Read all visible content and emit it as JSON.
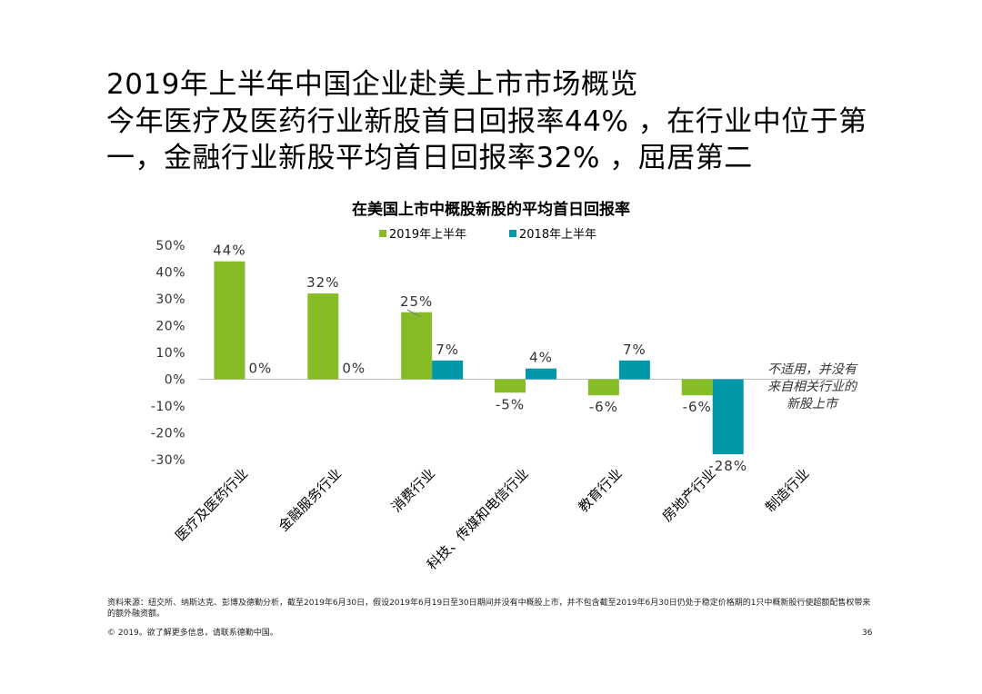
{
  "page": {
    "title": "2019年上半年中国企业赴美上市市场概览",
    "subtitle_lines": [
      "今年医疗及医药行业新股首日回报率44% ，在行业中位于第",
      "一，金融行业新股平均首日回报率32% ，屈居第二"
    ],
    "footnote": "资料来源：纽交所、纳斯达克、彭博及德勤分析，截至2019年6月30日，假设2019年6月19日至30日期间并没有中概股上市，并不包含截至2019年6月30日仍处于稳定价格期的1只中概新股行使超额配售权带来的额外融资额。",
    "copyright": "© 2019。欲了解更多信息，请联系德勤中国。",
    "page_number": "36"
  },
  "chart_data": {
    "type": "bar",
    "title": "在美国上市中概股新股的平均首日回报率",
    "categories": [
      "医疗及医药行业",
      "金融服务行业",
      "消费行业",
      "科技、传媒和电信行业",
      "教育行业",
      "房地产行业",
      "制造行业"
    ],
    "series": [
      {
        "name": "2019年上半年",
        "color": "#86bc25",
        "values": [
          44,
          32,
          25,
          -5,
          -6,
          -6,
          null
        ],
        "labels": [
          "44%",
          "32%",
          "25%",
          "-5%",
          "-6%",
          "-6%",
          ""
        ]
      },
      {
        "name": "2018年上半年",
        "color": "#0097a9",
        "values": [
          0,
          0,
          7,
          4,
          7,
          -28,
          null
        ],
        "labels": [
          "0%",
          "0%",
          "7%",
          "4%",
          "7%",
          "-28%",
          ""
        ]
      }
    ],
    "yticks": [
      50,
      40,
      30,
      20,
      10,
      0,
      -10,
      -20,
      -30
    ],
    "ytick_labels": [
      "50%",
      "40%",
      "30%",
      "20%",
      "10%",
      "0%",
      "-10%",
      "-20%",
      "-30%"
    ],
    "ylim": [
      -30,
      50
    ],
    "grid": false,
    "legend_position": "top",
    "annotation": "不适用，并没有来自相关行业的新股上市"
  }
}
